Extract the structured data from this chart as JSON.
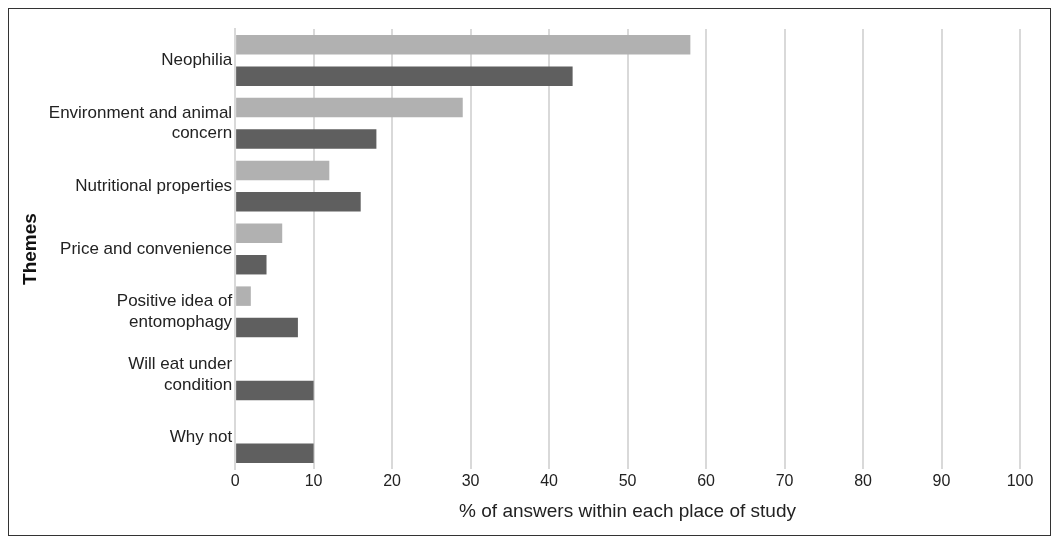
{
  "chart_data": {
    "type": "bar",
    "orientation": "horizontal",
    "xlabel": "% of answers within each place of study",
    "ylabel": "Themes",
    "categories": [
      "Neophilia",
      "Environment and animal concern",
      "Nutritional properties",
      "Price and convenience",
      "Positive idea of entomophagy",
      "Will eat under condition",
      "Why not"
    ],
    "series": [
      {
        "color": "#b1b1b1",
        "values": [
          58,
          29,
          12,
          6,
          2,
          null,
          null
        ]
      },
      {
        "color": "#5f5f5f",
        "values": [
          43,
          18,
          16,
          4,
          8,
          10,
          10
        ]
      }
    ],
    "xlim": [
      0,
      100
    ],
    "xticks": [
      0,
      10,
      20,
      30,
      40,
      50,
      60,
      70,
      80,
      90,
      100
    ],
    "grid": "x",
    "legend": false
  }
}
